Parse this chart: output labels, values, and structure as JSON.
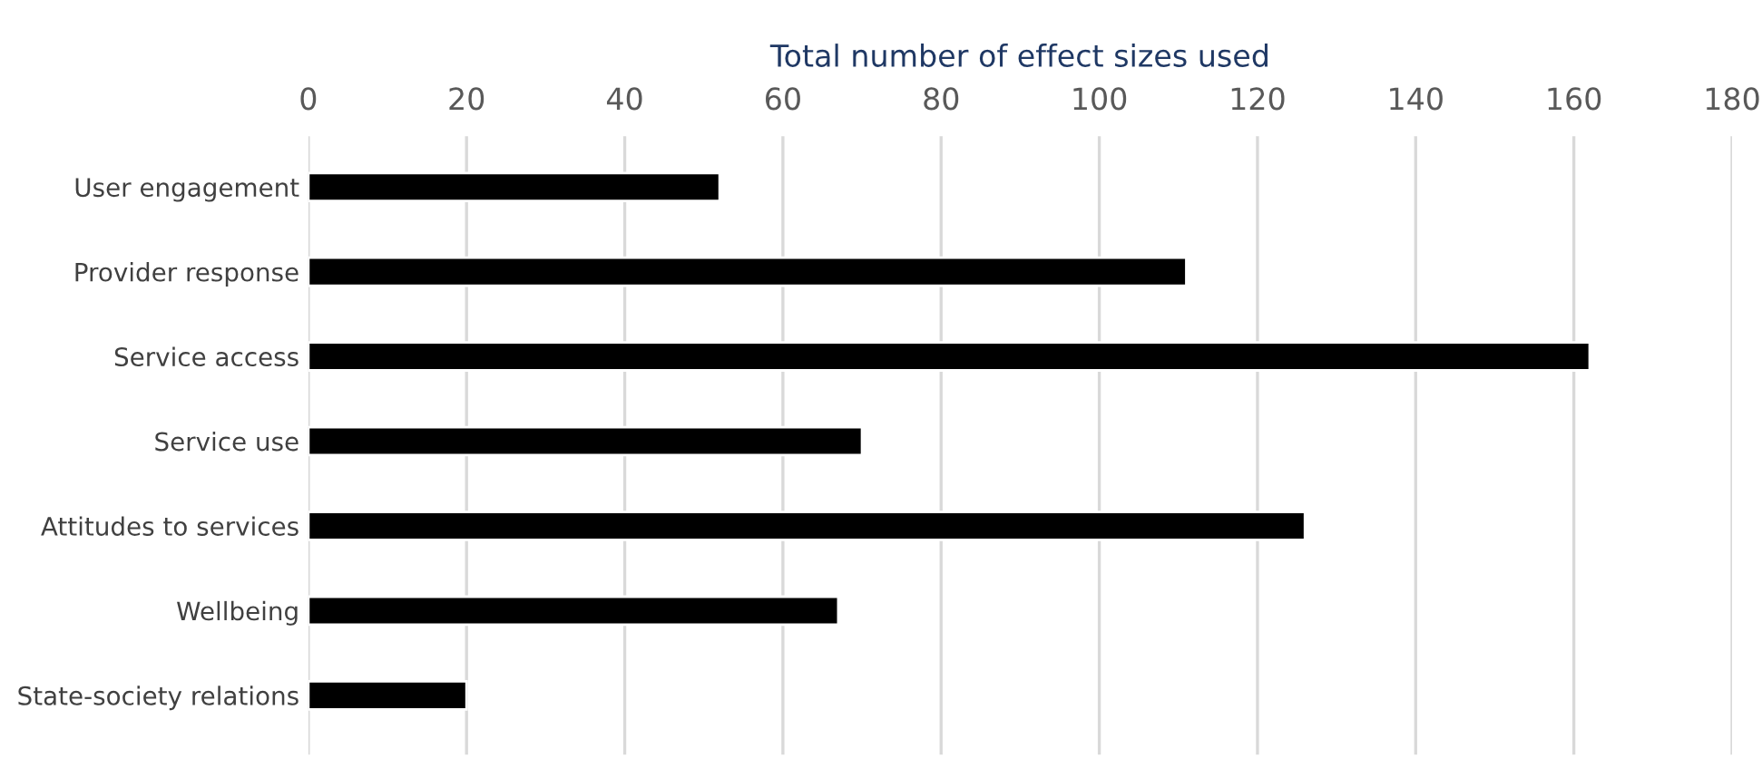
{
  "chart_data": {
    "type": "bar",
    "orientation": "horizontal",
    "xlabel": "Total number of effect sizes used",
    "categories": [
      "User engagement",
      "Provider response",
      "Service access",
      "Service use",
      "Attitudes to services",
      "Wellbeing",
      "State-society relations"
    ],
    "values": [
      52,
      111,
      162,
      70,
      126,
      67,
      20
    ],
    "color": "#000000",
    "xlim": [
      0,
      180
    ],
    "xticks": [
      0,
      20,
      40,
      60,
      80,
      100,
      120,
      140,
      160,
      180
    ],
    "grid": "x",
    "legend": false
  }
}
